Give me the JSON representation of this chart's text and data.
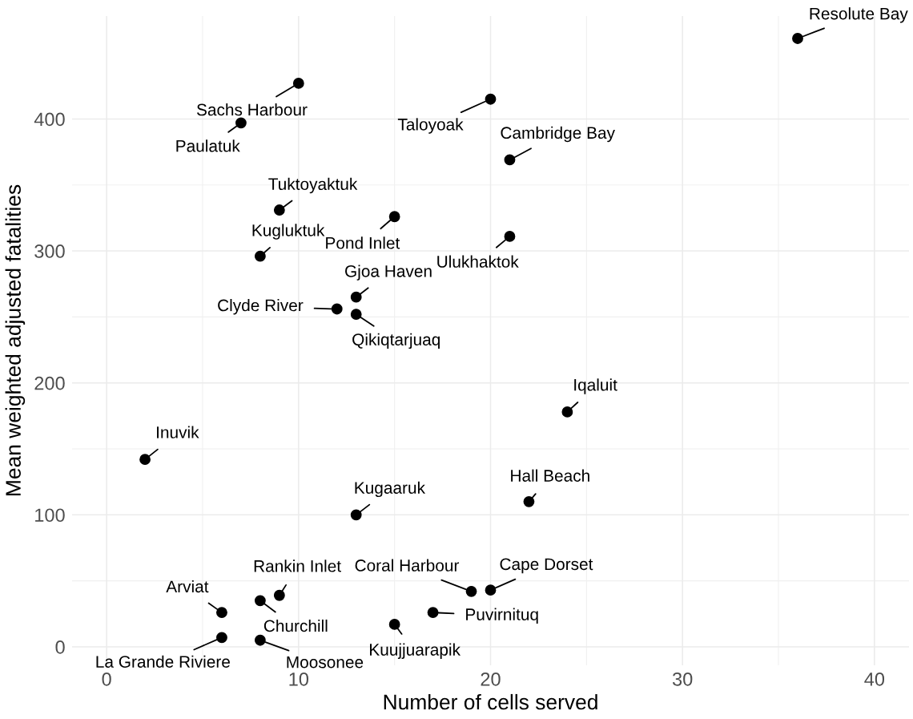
{
  "chart_data": {
    "type": "scatter",
    "xlabel": "Number of cells served",
    "ylabel": "Mean weighted adjusted fatalities",
    "x": [
      36,
      10,
      7,
      20,
      21,
      9,
      15,
      21,
      8,
      13,
      12,
      13,
      24,
      2,
      22,
      13,
      19,
      20,
      9,
      6,
      8,
      17,
      15,
      6,
      8
    ],
    "series": [
      {
        "color": "#000000",
        "values": [
          461,
          427,
          397,
          415,
          369,
          331,
          326,
          311,
          296,
          265,
          256,
          252,
          178,
          142,
          110,
          100,
          42,
          43,
          39,
          26,
          35,
          26,
          17,
          7,
          5
        ]
      }
    ],
    "annotations": [
      {
        "text": "Resolute Bay",
        "x": 36,
        "y": 461
      },
      {
        "text": "Sachs Harbour",
        "x": 10,
        "y": 427
      },
      {
        "text": "Paulatuk",
        "x": 7,
        "y": 397
      },
      {
        "text": "Taloyoak",
        "x": 20,
        "y": 415
      },
      {
        "text": "Cambridge Bay",
        "x": 21,
        "y": 369
      },
      {
        "text": "Tuktoyaktuk",
        "x": 9,
        "y": 331
      },
      {
        "text": "Pond Inlet",
        "x": 15,
        "y": 326
      },
      {
        "text": "Ulukhaktok",
        "x": 21,
        "y": 311
      },
      {
        "text": "Kugluktuk",
        "x": 8,
        "y": 296
      },
      {
        "text": "Gjoa Haven",
        "x": 13,
        "y": 265
      },
      {
        "text": "Clyde River",
        "x": 12,
        "y": 256
      },
      {
        "text": "Qikiqtarjuaq",
        "x": 13,
        "y": 252
      },
      {
        "text": "Iqaluit",
        "x": 24,
        "y": 178
      },
      {
        "text": "Inuvik",
        "x": 2,
        "y": 142
      },
      {
        "text": "Hall Beach",
        "x": 22,
        "y": 110
      },
      {
        "text": "Kugaaruk",
        "x": 13,
        "y": 100
      },
      {
        "text": "Coral Harbour",
        "x": 19,
        "y": 42
      },
      {
        "text": "Cape Dorset",
        "x": 20,
        "y": 43
      },
      {
        "text": "Rankin Inlet",
        "x": 9,
        "y": 39
      },
      {
        "text": "Arviat",
        "x": 6,
        "y": 26
      },
      {
        "text": "Churchill",
        "x": 8,
        "y": 35
      },
      {
        "text": "Puvirnituq",
        "x": 17,
        "y": 26
      },
      {
        "text": "Kuujjuarapik",
        "x": 15,
        "y": 17
      },
      {
        "text": "La Grande Riviere",
        "x": 6,
        "y": 7
      },
      {
        "text": "Moosonee",
        "x": 8,
        "y": 5
      }
    ],
    "xlim": [
      -1.8,
      41.8
    ],
    "ylim": [
      -14,
      478
    ],
    "xticks": [
      0,
      10,
      20,
      30,
      40
    ],
    "yticks": [
      0,
      100,
      200,
      300,
      400
    ],
    "grid": true,
    "marker": "circle"
  }
}
